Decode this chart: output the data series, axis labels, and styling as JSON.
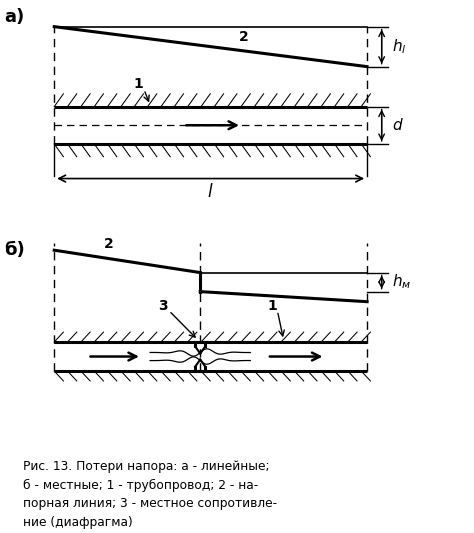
{
  "fig_width": 4.74,
  "fig_height": 5.33,
  "dpi": 100,
  "bg_color": "#ffffff",
  "line_color": "#000000",
  "label_a": "а)",
  "label_b": "б)",
  "caption": "Рис. 13. Потери напора: а - линейные;\nб - местные; 1 - трубопровод; 2 - на-\nпорная линия; 3 - местное сопротивле-\nние (диафрагма)"
}
